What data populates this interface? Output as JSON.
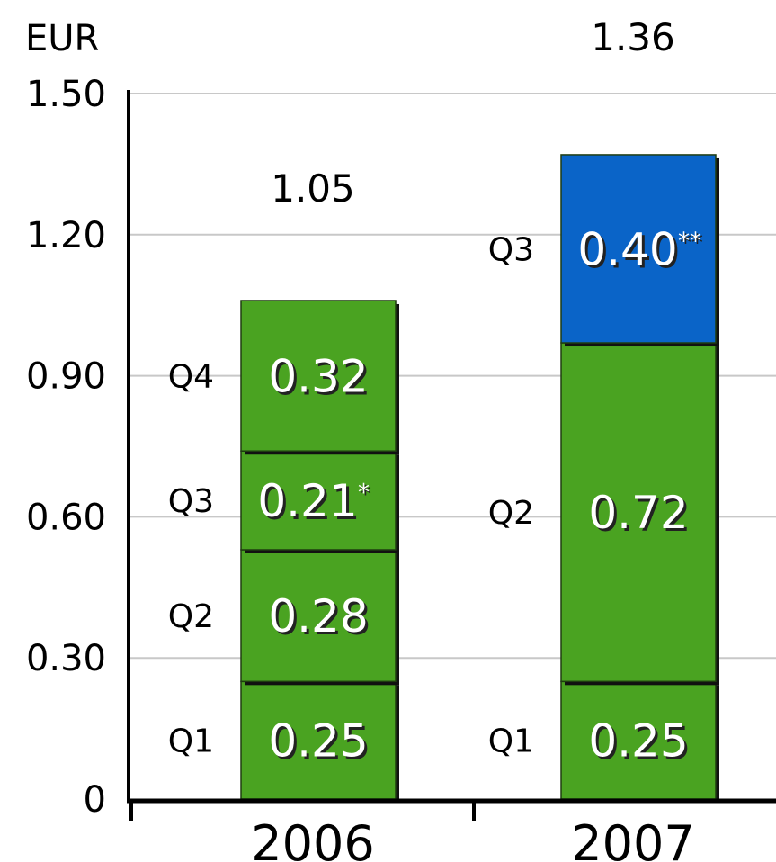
{
  "chart_data": {
    "type": "bar",
    "stacked": true,
    "unit_label": "EUR",
    "categories": [
      "2006",
      "2007"
    ],
    "ylim": [
      0,
      1.5
    ],
    "yticks": [
      "0",
      "0.30",
      "0.60",
      "0.90",
      "1.20",
      "1.50"
    ],
    "ytick_values": [
      0,
      0.3,
      0.6,
      0.9,
      1.2,
      1.5
    ],
    "grid": true,
    "totals": [
      "1.05",
      "1.36"
    ],
    "colors": {
      "regular": "#4aa321",
      "highlight": "#0a64c8"
    },
    "segments": [
      [
        {
          "quarter": "Q1",
          "value": 0.25,
          "label": "0.25",
          "note": "",
          "highlight": false
        },
        {
          "quarter": "Q2",
          "value": 0.28,
          "label": "0.28",
          "note": "",
          "highlight": false
        },
        {
          "quarter": "Q3",
          "value": 0.21,
          "label": "0.21",
          "note": "*",
          "highlight": false
        },
        {
          "quarter": "Q4",
          "value": 0.32,
          "label": "0.32",
          "note": "",
          "highlight": false
        }
      ],
      [
        {
          "quarter": "Q1",
          "value": 0.25,
          "label": "0.25",
          "note": "",
          "highlight": false
        },
        {
          "quarter": "Q2",
          "value": 0.72,
          "label": "0.72",
          "note": "",
          "highlight": false
        },
        {
          "quarter": "Q3",
          "value": 0.4,
          "label": "0.40",
          "note": "**",
          "highlight": true
        }
      ]
    ]
  }
}
